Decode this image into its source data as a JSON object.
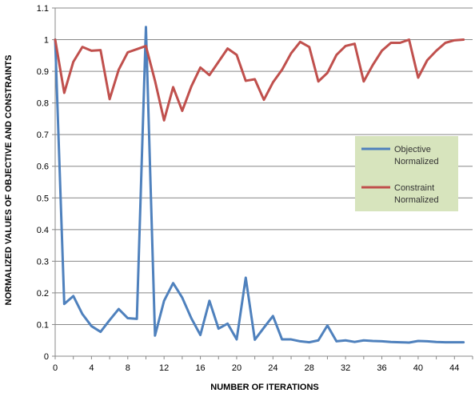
{
  "chart_data": {
    "type": "line",
    "xlabel": "NUMBER OF ITERATIONS",
    "ylabel": "NORMALIZED VALUES OF OBJECTIVE AND CONSTRAINTS",
    "xlim": [
      0,
      46
    ],
    "ylim": [
      0,
      1.1
    ],
    "x_ticks": [
      0,
      4,
      8,
      12,
      16,
      20,
      24,
      28,
      32,
      36,
      40,
      44
    ],
    "y_ticks": [
      0,
      0.1,
      0.2,
      0.3,
      0.4,
      0.5,
      0.6,
      0.7,
      0.8,
      0.9,
      1,
      1.1
    ],
    "x_tick_labels": [
      "0",
      "4",
      "8",
      "12",
      "16",
      "20",
      "24",
      "28",
      "32",
      "36",
      "40",
      "44"
    ],
    "y_tick_labels": [
      "0",
      "0.1",
      "0.2",
      "0.3",
      "0.4",
      "0.5",
      "0.6",
      "0.7",
      "0.8",
      "0.9",
      "1",
      "1.1"
    ],
    "grid": "horizontal",
    "legend_position": "right",
    "x": [
      0,
      1,
      2,
      3,
      4,
      5,
      6,
      7,
      8,
      9,
      10,
      11,
      12,
      13,
      14,
      15,
      16,
      17,
      18,
      19,
      20,
      21,
      22,
      23,
      24,
      25,
      26,
      27,
      28,
      29,
      30,
      31,
      32,
      33,
      34,
      35,
      36,
      37,
      38,
      39,
      40,
      41,
      42,
      43,
      44,
      45
    ],
    "series": [
      {
        "name": "Objective Normalized",
        "legend_lines": [
          "Objective",
          "Normalized"
        ],
        "color": "#4f81bd",
        "values": [
          1.0,
          0.165,
          0.19,
          0.133,
          0.095,
          0.077,
          0.114,
          0.149,
          0.12,
          0.118,
          1.04,
          0.065,
          0.175,
          0.231,
          0.185,
          0.12,
          0.067,
          0.175,
          0.087,
          0.103,
          0.053,
          0.248,
          0.052,
          0.09,
          0.127,
          0.053,
          0.053,
          0.047,
          0.044,
          0.05,
          0.097,
          0.047,
          0.05,
          0.045,
          0.05,
          0.048,
          0.047,
          0.045,
          0.044,
          0.043,
          0.048,
          0.047,
          0.045,
          0.044,
          0.044,
          0.044
        ]
      },
      {
        "name": "Constraint Normalized",
        "legend_lines": [
          "Constraint",
          "Normalized"
        ],
        "color": "#c0504d",
        "values": [
          1.0,
          0.832,
          0.93,
          0.977,
          0.965,
          0.967,
          0.812,
          0.905,
          0.96,
          0.97,
          0.98,
          0.87,
          0.745,
          0.85,
          0.775,
          0.852,
          0.912,
          0.888,
          0.93,
          0.972,
          0.952,
          0.87,
          0.875,
          0.81,
          0.865,
          0.905,
          0.957,
          0.993,
          0.977,
          0.868,
          0.895,
          0.952,
          0.98,
          0.987,
          0.868,
          0.92,
          0.965,
          0.99,
          0.99,
          1.0,
          0.88,
          0.935,
          0.965,
          0.99,
          0.998,
          1.0
        ]
      }
    ]
  }
}
